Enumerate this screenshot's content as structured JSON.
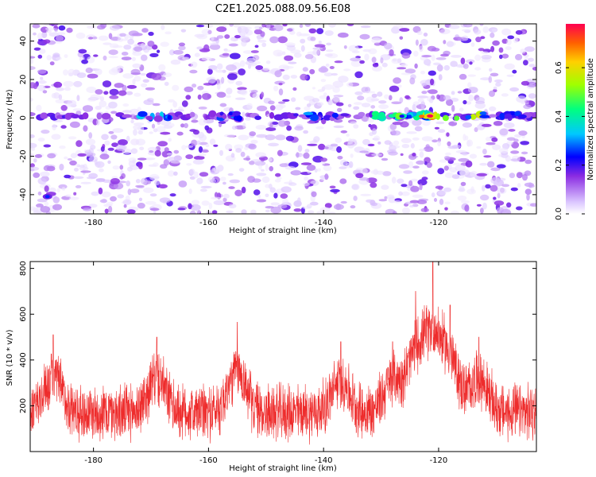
{
  "title": "C2E1.2025.088.09.56.E08",
  "chart_data": [
    {
      "type": "heatmap",
      "xlabel": "Height of straight line (km)",
      "ylabel": "Frequency (Hz)",
      "xlim": [
        -191,
        -103
      ],
      "ylim": [
        -50,
        49
      ],
      "xticks": [
        -180,
        -160,
        -140,
        -120
      ],
      "yticks": [
        -40,
        -20,
        0,
        20,
        40
      ],
      "colorbar": {
        "label": "Normalized spectral amplitude",
        "range": [
          0.0,
          0.78
        ],
        "ticks": [
          0.0,
          0.2,
          0.4,
          0.6
        ],
        "tick_labels": [
          "0.0",
          "0.2",
          "0.4",
          "0.6"
        ]
      },
      "dominant_band_frequency_hz": 1,
      "band_segments": [
        {
          "x_start": -172,
          "x_end": -166,
          "peak_amplitude": 0.35
        },
        {
          "x_start": -160,
          "x_end": -154,
          "peak_amplitude": 0.3
        },
        {
          "x_start": -143,
          "x_end": -136,
          "peak_amplitude": 0.32
        },
        {
          "x_start": -131,
          "x_end": -112,
          "peak_amplitude": 0.6
        },
        {
          "x_start": -123,
          "x_end": -120,
          "peak_amplitude": 0.78
        },
        {
          "x_start": -110,
          "x_end": -104,
          "peak_amplitude": 0.28
        }
      ],
      "isolated_peaks": [
        {
          "x": -188,
          "y": -41,
          "amplitude": 0.25
        }
      ]
    },
    {
      "type": "line",
      "xlabel": "Height of straight line (km)",
      "ylabel": "SNR (10 * v/v)",
      "xlim": [
        -191,
        -103
      ],
      "ylim": [
        0,
        830
      ],
      "xticks": [
        -180,
        -160,
        -140,
        -120
      ],
      "yticks": [
        200,
        400,
        600,
        800
      ],
      "series": [
        {
          "color": "#ee2c2c",
          "baseline_mean": 170,
          "baseline_spread": 120,
          "peaks": [
            {
              "x": -187,
              "y": 510
            },
            {
              "x": -169,
              "y": 500
            },
            {
              "x": -155,
              "y": 565
            },
            {
              "x": -137,
              "y": 480
            },
            {
              "x": -128,
              "y": 480
            },
            {
              "x": -124,
              "y": 700
            },
            {
              "x": -121,
              "y": 830
            },
            {
              "x": -118,
              "y": 640
            },
            {
              "x": -113,
              "y": 500
            }
          ]
        }
      ]
    }
  ]
}
